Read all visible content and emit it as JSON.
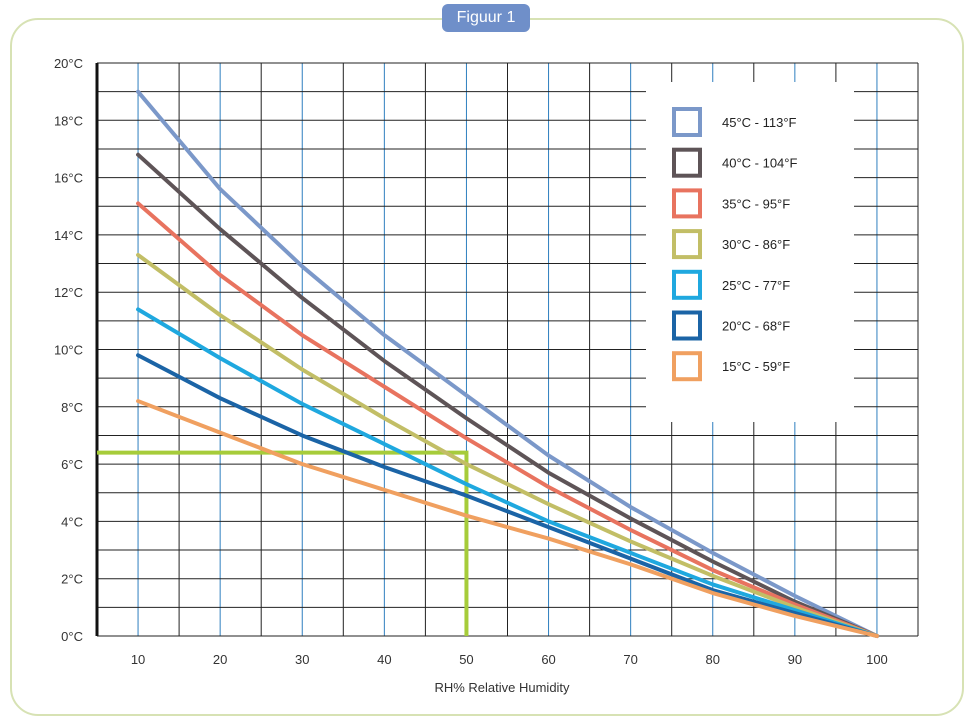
{
  "figure_label": "Figuur 1",
  "chart_data": {
    "type": "line",
    "title": "",
    "xlabel": "RH% Relative Humidity",
    "ylabel": "",
    "xlim": [
      5,
      105
    ],
    "ylim": [
      0,
      20
    ],
    "x_ticks": [
      10,
      20,
      30,
      40,
      50,
      60,
      70,
      80,
      90,
      100
    ],
    "x_tick_labels": [
      "10",
      "20",
      "30",
      "40",
      "50",
      "60",
      "70",
      "80",
      "90",
      "100"
    ],
    "y_ticks": [
      0,
      2,
      4,
      6,
      8,
      10,
      12,
      14,
      16,
      18,
      20
    ],
    "y_tick_labels": [
      "0°C",
      "2°C",
      "4°C",
      "6°C",
      "8°C",
      "10°C",
      "12°C",
      "14°C",
      "16°C",
      "18°C",
      "20°C"
    ],
    "grid": true,
    "legend_position": "top-right",
    "x": [
      10,
      20,
      30,
      40,
      50,
      60,
      70,
      80,
      90,
      100
    ],
    "series": [
      {
        "name": "45°C - 113°F",
        "color": "#7b98c9",
        "values": [
          19.0,
          15.6,
          12.9,
          10.5,
          8.4,
          6.3,
          4.5,
          2.9,
          1.4,
          0.0
        ]
      },
      {
        "name": "40°C - 104°F",
        "color": "#5e5457",
        "values": [
          16.8,
          14.2,
          11.8,
          9.6,
          7.6,
          5.7,
          4.1,
          2.6,
          1.2,
          0.0
        ]
      },
      {
        "name": "35°C - 95°F",
        "color": "#e8735f",
        "values": [
          15.1,
          12.6,
          10.5,
          8.7,
          6.9,
          5.2,
          3.7,
          2.3,
          1.1,
          0.0
        ]
      },
      {
        "name": "30°C - 86°F",
        "color": "#c2be66",
        "values": [
          13.3,
          11.2,
          9.3,
          7.6,
          6.0,
          4.6,
          3.3,
          2.1,
          1.0,
          0.0
        ]
      },
      {
        "name": "25°C - 77°F",
        "color": "#1fa8df",
        "values": [
          11.4,
          9.7,
          8.1,
          6.7,
          5.3,
          4.0,
          2.9,
          1.8,
          0.9,
          0.0
        ]
      },
      {
        "name": "20°C - 68°F",
        "color": "#1b64a6",
        "values": [
          9.8,
          8.3,
          7.0,
          5.9,
          4.9,
          3.8,
          2.7,
          1.6,
          0.8,
          0.0
        ]
      },
      {
        "name": "15°C - 59°F",
        "color": "#f0a060",
        "values": [
          8.2,
          7.1,
          6.0,
          5.1,
          4.2,
          3.4,
          2.5,
          1.5,
          0.7,
          0.0
        ]
      }
    ],
    "annotation": {
      "color": "#a6cc3a",
      "x": 50,
      "y": 6.4
    }
  }
}
